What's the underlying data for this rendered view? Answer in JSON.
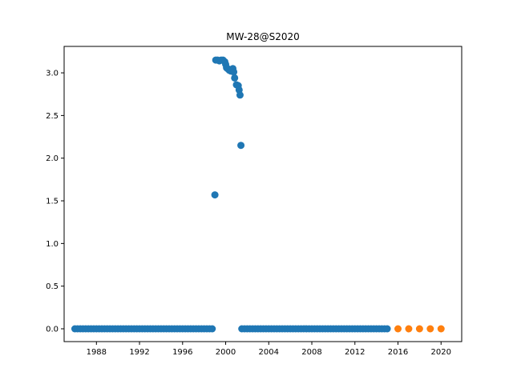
{
  "chart_data": {
    "type": "scatter",
    "title": "MW-28@S2020",
    "xlabel": "",
    "ylabel": "",
    "xlim": [
      "1985-01-01",
      "2021-12-01"
    ],
    "ylim": [
      -0.15,
      3.31
    ],
    "x_ticks": [
      "1988",
      "1992",
      "1996",
      "2000",
      "2004",
      "2008",
      "2012",
      "2016",
      "2020"
    ],
    "y_ticks": [
      "0.0",
      "0.5",
      "1.0",
      "1.5",
      "2.0",
      "2.5",
      "3.0"
    ],
    "grid": false,
    "legend": "none",
    "series": [
      {
        "color": "#1f77b4",
        "points": [
          [
            "1986-01",
            0.0
          ],
          [
            "1986-04",
            0.0
          ],
          [
            "1986-07",
            0.0
          ],
          [
            "1986-10",
            0.0
          ],
          [
            "1987-01",
            0.0
          ],
          [
            "1987-04",
            0.0
          ],
          [
            "1987-07",
            0.0
          ],
          [
            "1987-10",
            0.0
          ],
          [
            "1988-01",
            0.0
          ],
          [
            "1988-04",
            0.0
          ],
          [
            "1988-07",
            0.0
          ],
          [
            "1988-10",
            0.0
          ],
          [
            "1989-01",
            0.0
          ],
          [
            "1989-04",
            0.0
          ],
          [
            "1989-07",
            0.0
          ],
          [
            "1989-10",
            0.0
          ],
          [
            "1990-01",
            0.0
          ],
          [
            "1990-04",
            0.0
          ],
          [
            "1990-07",
            0.0
          ],
          [
            "1990-10",
            0.0
          ],
          [
            "1991-01",
            0.0
          ],
          [
            "1991-04",
            0.0
          ],
          [
            "1991-07",
            0.0
          ],
          [
            "1991-10",
            0.0
          ],
          [
            "1992-01",
            0.0
          ],
          [
            "1992-04",
            0.0
          ],
          [
            "1992-07",
            0.0
          ],
          [
            "1992-10",
            0.0
          ],
          [
            "1993-01",
            0.0
          ],
          [
            "1993-04",
            0.0
          ],
          [
            "1993-07",
            0.0
          ],
          [
            "1993-10",
            0.0
          ],
          [
            "1994-01",
            0.0
          ],
          [
            "1994-04",
            0.0
          ],
          [
            "1994-07",
            0.0
          ],
          [
            "1994-10",
            0.0
          ],
          [
            "1995-01",
            0.0
          ],
          [
            "1995-04",
            0.0
          ],
          [
            "1995-07",
            0.0
          ],
          [
            "1995-10",
            0.0
          ],
          [
            "1996-01",
            0.0
          ],
          [
            "1996-04",
            0.0
          ],
          [
            "1996-07",
            0.0
          ],
          [
            "1996-10",
            0.0
          ],
          [
            "1997-01",
            0.0
          ],
          [
            "1997-04",
            0.0
          ],
          [
            "1997-07",
            0.0
          ],
          [
            "1997-10",
            0.0
          ],
          [
            "1998-01",
            0.0
          ],
          [
            "1998-04",
            0.0
          ],
          [
            "1998-07",
            0.0
          ],
          [
            "1998-10",
            0.0
          ],
          [
            "1999-01",
            1.57
          ],
          [
            "1999-02",
            3.15
          ],
          [
            "1999-04",
            3.15
          ],
          [
            "1999-06",
            3.14
          ],
          [
            "1999-08",
            3.15
          ],
          [
            "1999-10",
            3.15
          ],
          [
            "1999-12",
            3.13
          ],
          [
            "2000-01",
            3.1
          ],
          [
            "2000-02",
            3.06
          ],
          [
            "2000-03",
            3.05
          ],
          [
            "2000-05",
            3.03
          ],
          [
            "2000-07",
            3.02
          ],
          [
            "2000-09",
            3.05
          ],
          [
            "2000-10",
            3.01
          ],
          [
            "2000-11",
            2.94
          ],
          [
            "2001-01",
            2.86
          ],
          [
            "2001-03",
            2.85
          ],
          [
            "2001-04",
            2.8
          ],
          [
            "2001-05",
            2.74
          ],
          [
            "2001-06",
            2.15
          ],
          [
            "2001-07",
            0.0
          ],
          [
            "2001-10",
            0.0
          ],
          [
            "2002-01",
            0.0
          ],
          [
            "2002-04",
            0.0
          ],
          [
            "2002-07",
            0.0
          ],
          [
            "2002-10",
            0.0
          ],
          [
            "2003-01",
            0.0
          ],
          [
            "2003-04",
            0.0
          ],
          [
            "2003-07",
            0.0
          ],
          [
            "2003-10",
            0.0
          ],
          [
            "2004-01",
            0.0
          ],
          [
            "2004-04",
            0.0
          ],
          [
            "2004-07",
            0.0
          ],
          [
            "2004-10",
            0.0
          ],
          [
            "2005-01",
            0.0
          ],
          [
            "2005-04",
            0.0
          ],
          [
            "2005-07",
            0.0
          ],
          [
            "2005-10",
            0.0
          ],
          [
            "2006-01",
            0.0
          ],
          [
            "2006-04",
            0.0
          ],
          [
            "2006-07",
            0.0
          ],
          [
            "2006-10",
            0.0
          ],
          [
            "2007-01",
            0.0
          ],
          [
            "2007-04",
            0.0
          ],
          [
            "2007-07",
            0.0
          ],
          [
            "2007-10",
            0.0
          ],
          [
            "2008-01",
            0.0
          ],
          [
            "2008-04",
            0.0
          ],
          [
            "2008-07",
            0.0
          ],
          [
            "2008-10",
            0.0
          ],
          [
            "2009-01",
            0.0
          ],
          [
            "2009-04",
            0.0
          ],
          [
            "2009-07",
            0.0
          ],
          [
            "2009-10",
            0.0
          ],
          [
            "2010-01",
            0.0
          ],
          [
            "2010-04",
            0.0
          ],
          [
            "2010-07",
            0.0
          ],
          [
            "2010-10",
            0.0
          ],
          [
            "2011-01",
            0.0
          ],
          [
            "2011-04",
            0.0
          ],
          [
            "2011-07",
            0.0
          ],
          [
            "2011-10",
            0.0
          ],
          [
            "2012-01",
            0.0
          ],
          [
            "2012-04",
            0.0
          ],
          [
            "2012-07",
            0.0
          ],
          [
            "2012-10",
            0.0
          ],
          [
            "2013-01",
            0.0
          ],
          [
            "2013-04",
            0.0
          ],
          [
            "2013-07",
            0.0
          ],
          [
            "2013-10",
            0.0
          ],
          [
            "2014-01",
            0.0
          ],
          [
            "2014-04",
            0.0
          ],
          [
            "2014-07",
            0.0
          ],
          [
            "2014-10",
            0.0
          ],
          [
            "2015-01",
            0.0
          ]
        ]
      },
      {
        "color": "#ff7f0e",
        "points": [
          [
            "2016-01",
            0.0
          ],
          [
            "2017-01",
            0.0
          ],
          [
            "2018-01",
            0.0
          ],
          [
            "2019-01",
            0.0
          ],
          [
            "2020-01",
            0.0
          ]
        ]
      }
    ]
  }
}
